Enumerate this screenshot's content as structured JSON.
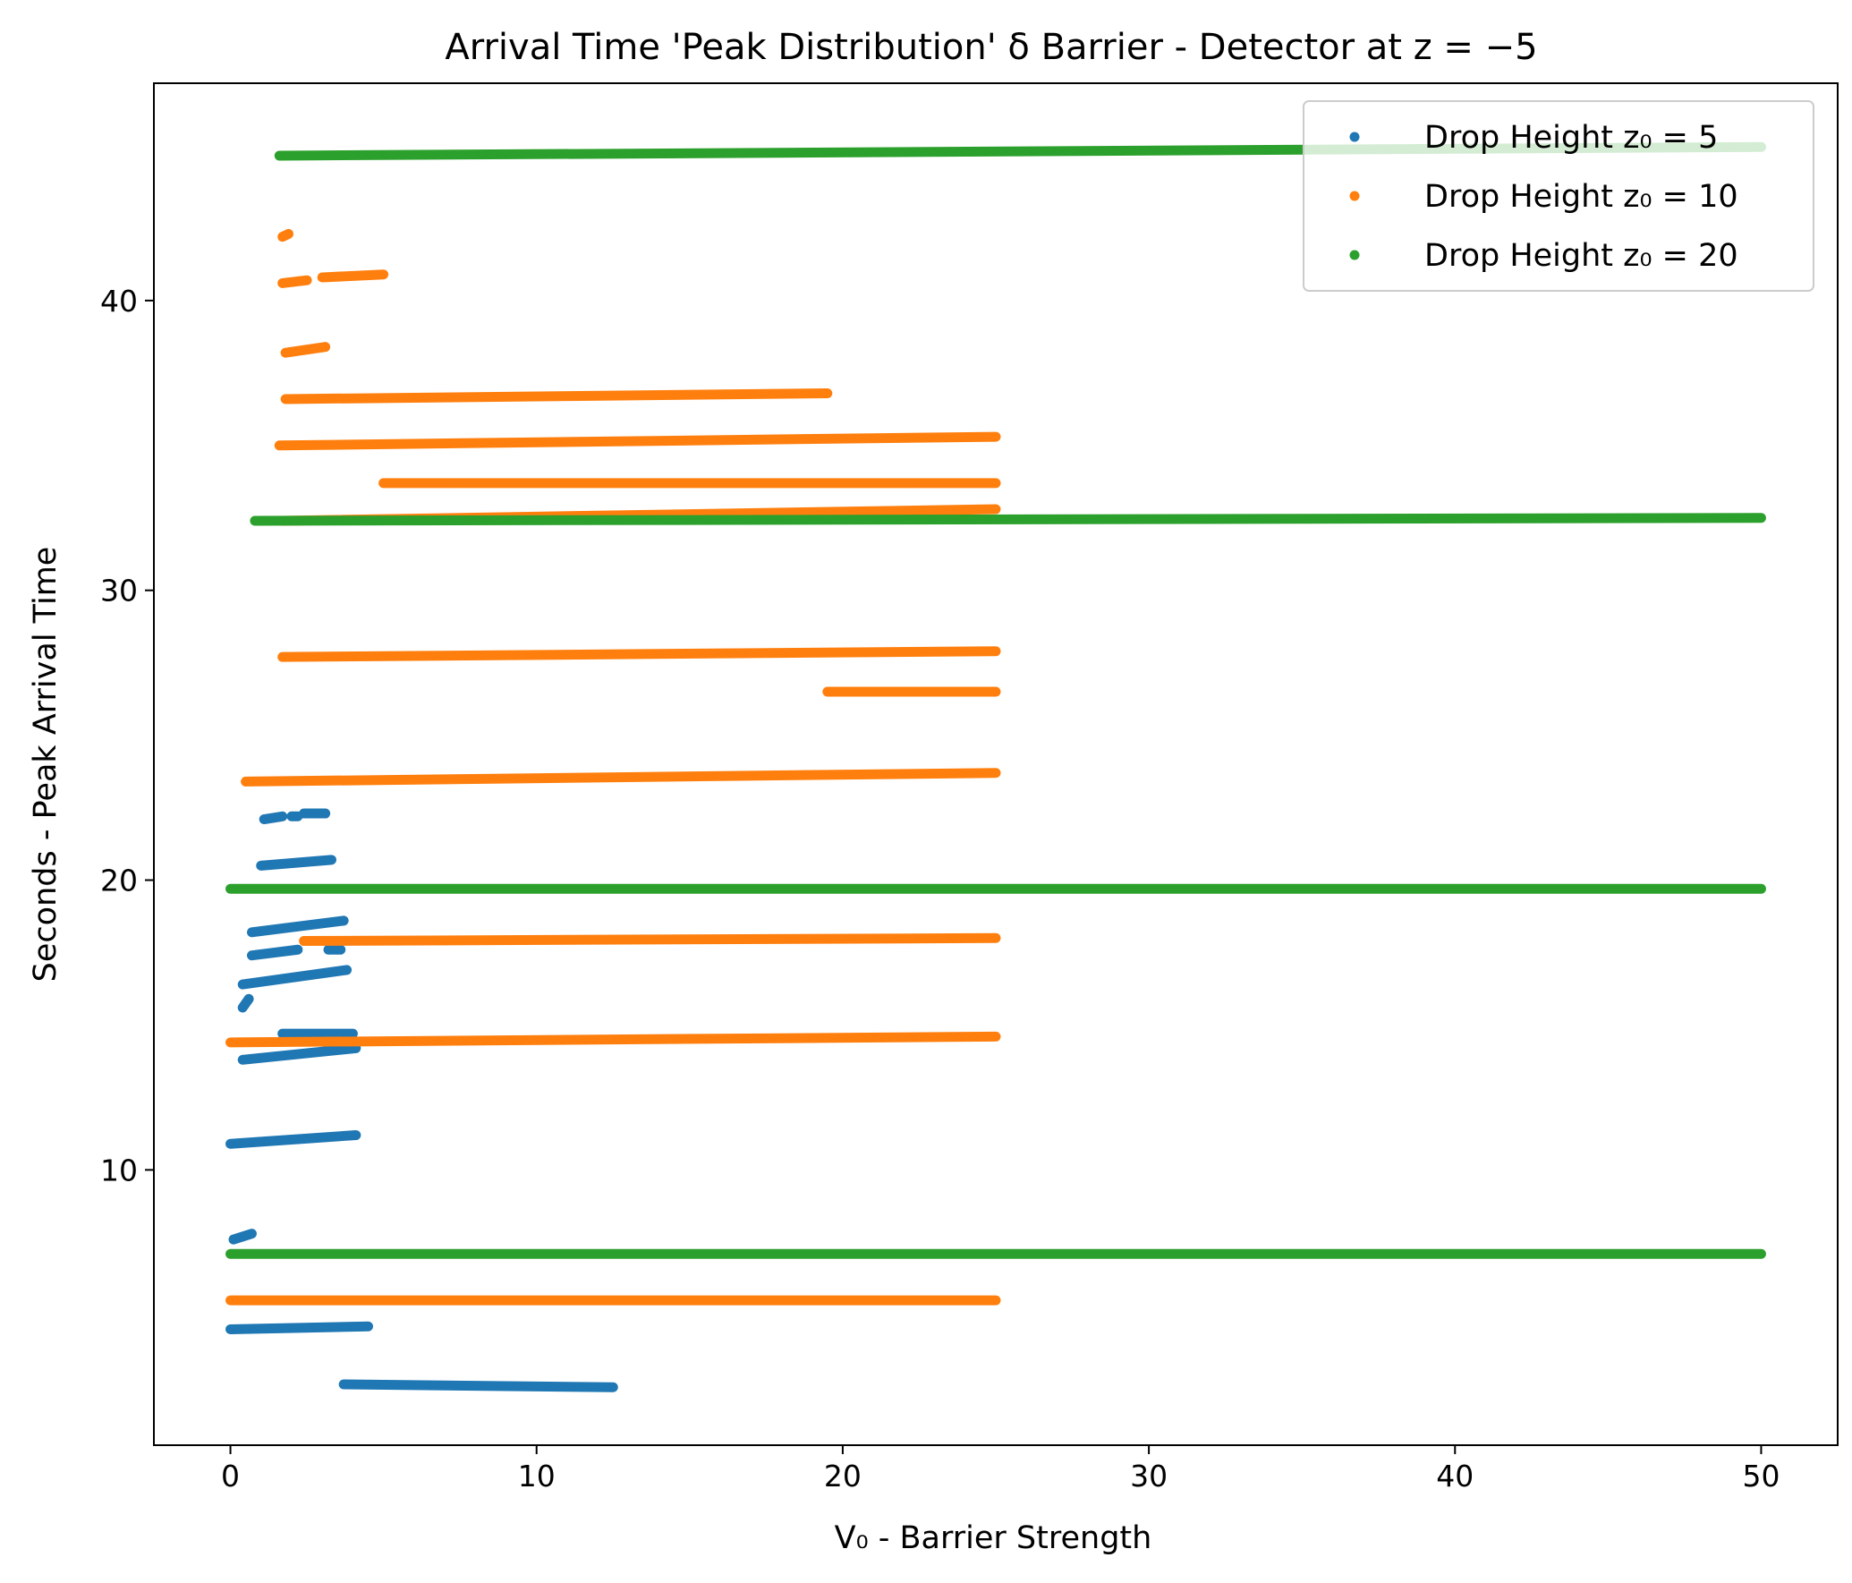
{
  "chart_data": {
    "type": "scatter",
    "title": "Arrival Time 'Peak Distribution' δ Barrier - Detector at z = −5",
    "xlabel": "V₀ - Barrier Strength",
    "ylabel": "Seconds - Peak Arrival Time",
    "xlim": [
      -2.5,
      52.5
    ],
    "ylim": [
      0.5,
      47.5
    ],
    "xticks": [
      0,
      10,
      20,
      30,
      40,
      50
    ],
    "yticks": [
      10,
      20,
      30,
      40
    ],
    "grid": false,
    "legend_position": "top-right",
    "series": [
      {
        "name": "Drop Height z₀ = 5",
        "color": "#1f77b4",
        "segments": [
          {
            "x": [
              0,
              4.5
            ],
            "y": [
              4.5,
              4.6
            ]
          },
          {
            "x": [
              3.7,
              12.5
            ],
            "y": [
              2.6,
              2.5
            ]
          },
          {
            "x": [
              0.1,
              0.7
            ],
            "y": [
              7.6,
              7.8
            ]
          },
          {
            "x": [
              0,
              4.1
            ],
            "y": [
              10.9,
              11.2
            ]
          },
          {
            "x": [
              0.4,
              4.1
            ],
            "y": [
              13.8,
              14.2
            ]
          },
          {
            "x": [
              1.7,
              4.0
            ],
            "y": [
              14.7,
              14.7
            ]
          },
          {
            "x": [
              0.4,
              0.6
            ],
            "y": [
              15.6,
              15.9
            ]
          },
          {
            "x": [
              0.4,
              3.8
            ],
            "y": [
              16.4,
              16.9
            ]
          },
          {
            "x": [
              0.7,
              2.2
            ],
            "y": [
              17.4,
              17.6
            ]
          },
          {
            "x": [
              3.2,
              3.6
            ],
            "y": [
              17.6,
              17.6
            ]
          },
          {
            "x": [
              0.7,
              3.7
            ],
            "y": [
              18.2,
              18.6
            ]
          },
          {
            "x": [
              1.0,
              3.3
            ],
            "y": [
              20.5,
              20.7
            ]
          },
          {
            "x": [
              1.1,
              1.7
            ],
            "y": [
              22.1,
              22.2
            ]
          },
          {
            "x": [
              2.0,
              2.2
            ],
            "y": [
              22.2,
              22.2
            ]
          },
          {
            "x": [
              2.4,
              3.1
            ],
            "y": [
              22.3,
              22.3
            ]
          }
        ]
      },
      {
        "name": "Drop Height z₀ = 10",
        "color": "#ff7f0e",
        "segments": [
          {
            "x": [
              0,
              25
            ],
            "y": [
              5.5,
              5.5
            ]
          },
          {
            "x": [
              0,
              25
            ],
            "y": [
              14.4,
              14.6
            ]
          },
          {
            "x": [
              2.4,
              25
            ],
            "y": [
              17.9,
              18.0
            ]
          },
          {
            "x": [
              0.5,
              25
            ],
            "y": [
              23.4,
              23.7
            ]
          },
          {
            "x": [
              19.5,
              25
            ],
            "y": [
              26.5,
              26.5
            ]
          },
          {
            "x": [
              1.7,
              25
            ],
            "y": [
              27.7,
              27.9
            ]
          },
          {
            "x": [
              1.7,
              25
            ],
            "y": [
              32.4,
              32.8
            ]
          },
          {
            "x": [
              5.0,
              25
            ],
            "y": [
              33.7,
              33.7
            ]
          },
          {
            "x": [
              1.6,
              25
            ],
            "y": [
              35.0,
              35.3
            ]
          },
          {
            "x": [
              1.8,
              19.5
            ],
            "y": [
              36.6,
              36.8
            ]
          },
          {
            "x": [
              1.8,
              3.1
            ],
            "y": [
              38.2,
              38.4
            ]
          },
          {
            "x": [
              1.7,
              2.5
            ],
            "y": [
              40.6,
              40.7
            ]
          },
          {
            "x": [
              3.0,
              5.0
            ],
            "y": [
              40.8,
              40.9
            ]
          },
          {
            "x": [
              1.7,
              1.9
            ],
            "y": [
              42.2,
              42.3
            ]
          }
        ]
      },
      {
        "name": "Drop Height z₀ = 20",
        "color": "#2ca02c",
        "segments": [
          {
            "x": [
              0,
              50
            ],
            "y": [
              7.1,
              7.1
            ]
          },
          {
            "x": [
              0,
              50
            ],
            "y": [
              19.7,
              19.7
            ]
          },
          {
            "x": [
              0.8,
              50
            ],
            "y": [
              32.4,
              32.5
            ]
          },
          {
            "x": [
              1.6,
              50
            ],
            "y": [
              45.0,
              45.3
            ]
          }
        ]
      }
    ]
  }
}
